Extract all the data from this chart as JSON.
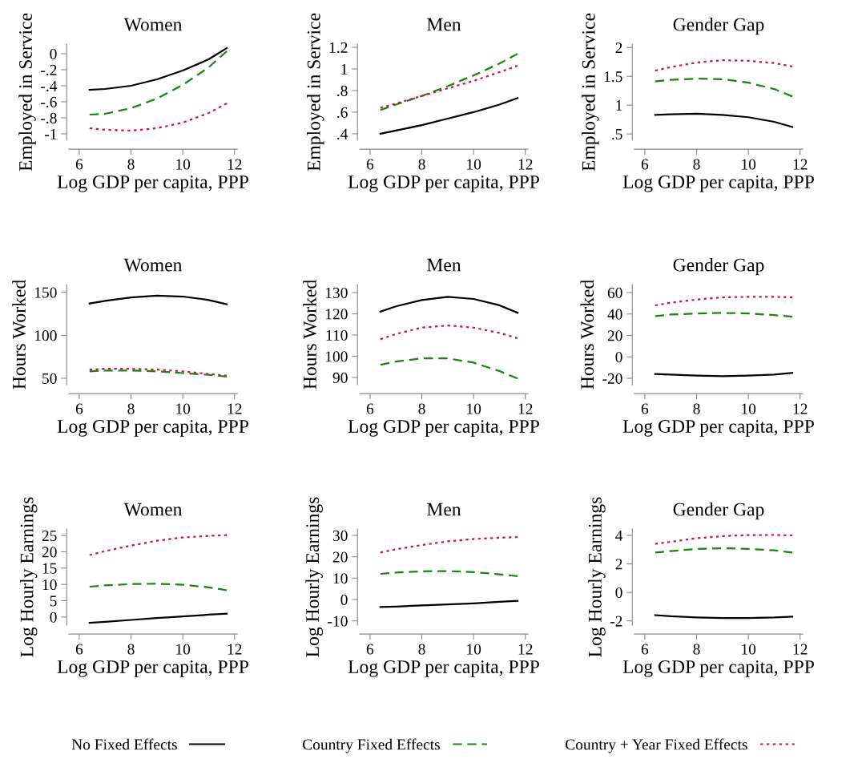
{
  "chart_data": [
    {
      "type": "line",
      "title": "Women",
      "xlabel": "Log GDP per capita, PPP",
      "ylabel": "Employed in Service",
      "xlim": [
        5.6,
        12.1
      ],
      "xticks": [
        6,
        8,
        10,
        12
      ],
      "ylim": [
        -1.08,
        0.12
      ],
      "yticks": [
        {
          "value": -1,
          "label": "-1"
        },
        {
          "value": -0.8,
          "label": "-.8"
        },
        {
          "value": -0.6,
          "label": "-.6"
        },
        {
          "value": -0.4,
          "label": "-.4"
        },
        {
          "value": -0.2,
          "label": "-.2"
        },
        0
      ],
      "grid": false,
      "legend": "bottom",
      "x": [
        6.4,
        7,
        8,
        9,
        10,
        11,
        11.7
      ],
      "series": [
        {
          "name": "No Fixed Effects",
          "color": "#000000",
          "line_style": "solid",
          "values": [
            -0.45,
            -0.44,
            -0.4,
            -0.32,
            -0.21,
            -0.07,
            0.07
          ]
        },
        {
          "name": "Country Fixed Effects",
          "color": "#138a07",
          "line_style": "dashed",
          "values": [
            -0.76,
            -0.75,
            -0.68,
            -0.56,
            -0.39,
            -0.17,
            0.03
          ]
        },
        {
          "name": "Country + Year Fixed Effects",
          "color": "#d0104c",
          "line_style": "dotted",
          "values": [
            -0.93,
            -0.95,
            -0.96,
            -0.93,
            -0.86,
            -0.74,
            -0.62
          ]
        }
      ]
    },
    {
      "type": "line",
      "title": "Men",
      "xlabel": "Log GDP per capita, PPP",
      "ylabel": "Employed in Service",
      "xlim": [
        5.6,
        12.1
      ],
      "xticks": [
        6,
        8,
        10,
        12
      ],
      "ylim": [
        0.34,
        1.23
      ],
      "yticks": [
        {
          "value": 0.4,
          "label": ".4"
        },
        {
          "value": 0.6,
          "label": ".6"
        },
        {
          "value": 0.8,
          "label": ".8"
        },
        1,
        1.2
      ],
      "grid": false,
      "x": [
        6.4,
        7,
        8,
        9,
        10,
        11,
        11.7
      ],
      "series": [
        {
          "color": "#000000",
          "line_style": "solid",
          "values": [
            0.4,
            0.43,
            0.48,
            0.54,
            0.6,
            0.67,
            0.73
          ]
        },
        {
          "color": "#138a07",
          "line_style": "dashed",
          "values": [
            0.62,
            0.67,
            0.75,
            0.84,
            0.94,
            1.05,
            1.14
          ]
        },
        {
          "color": "#d0104c",
          "line_style": "dotted",
          "values": [
            0.64,
            0.68,
            0.75,
            0.82,
            0.89,
            0.97,
            1.03
          ]
        }
      ]
    },
    {
      "type": "line",
      "title": "Gender Gap",
      "xlabel": "Log GDP per capita, PPP",
      "ylabel": "Employed in Service",
      "xlim": [
        5.6,
        12.1
      ],
      "xticks": [
        6,
        8,
        10,
        12
      ],
      "ylim": [
        0.39,
        2.06
      ],
      "yticks": [
        {
          "value": 0.5,
          "label": ".5"
        },
        1,
        1.5,
        2
      ],
      "grid": false,
      "x": [
        6.4,
        7,
        8,
        9,
        10,
        11,
        11.7
      ],
      "series": [
        {
          "color": "#000000",
          "line_style": "solid",
          "values": [
            0.83,
            0.84,
            0.85,
            0.83,
            0.79,
            0.71,
            0.62
          ]
        },
        {
          "color": "#138a07",
          "line_style": "dashed",
          "values": [
            1.41,
            1.44,
            1.46,
            1.45,
            1.39,
            1.28,
            1.15
          ]
        },
        {
          "color": "#d0104c",
          "line_style": "dotted",
          "values": [
            1.6,
            1.66,
            1.74,
            1.78,
            1.77,
            1.73,
            1.67
          ]
        }
      ]
    },
    {
      "type": "line",
      "title": "Women",
      "xlabel": "Log GDP per capita, PPP",
      "ylabel": "Hours Worked",
      "xlim": [
        5.6,
        12.1
      ],
      "xticks": [
        6,
        8,
        10,
        12
      ],
      "ylim": [
        42.5,
        159
      ],
      "yticks": [
        50,
        100,
        150
      ],
      "grid": false,
      "x": [
        6.4,
        7,
        8,
        9,
        10,
        11,
        11.7
      ],
      "series": [
        {
          "color": "#000000",
          "line_style": "solid",
          "values": [
            137,
            140,
            144,
            146,
            145,
            141,
            136
          ]
        },
        {
          "color": "#138a07",
          "line_style": "dashed",
          "values": [
            58,
            59,
            59,
            58,
            56,
            54,
            52
          ]
        },
        {
          "color": "#d0104c",
          "line_style": "dotted",
          "values": [
            60,
            61,
            61,
            60,
            58,
            55,
            53
          ]
        }
      ]
    },
    {
      "type": "line",
      "title": "Men",
      "xlabel": "Log GDP per capita, PPP",
      "ylabel": "Hours Worked",
      "xlim": [
        5.6,
        12.1
      ],
      "xticks": [
        6,
        8,
        10,
        12
      ],
      "ylim": [
        86.6,
        133.8
      ],
      "yticks": [
        90,
        100,
        110,
        120,
        130
      ],
      "grid": false,
      "x": [
        6.4,
        7,
        8,
        9,
        10,
        11,
        11.7
      ],
      "series": [
        {
          "color": "#000000",
          "line_style": "solid",
          "values": [
            121,
            123.5,
            126.5,
            128,
            127,
            124,
            120.5
          ]
        },
        {
          "color": "#138a07",
          "line_style": "dashed",
          "values": [
            96,
            97.5,
            99,
            99,
            97,
            93,
            89.5
          ]
        },
        {
          "color": "#d0104c",
          "line_style": "dotted",
          "values": [
            108,
            110.5,
            113.5,
            114.5,
            113.5,
            111,
            108.5
          ]
        }
      ]
    },
    {
      "type": "line",
      "title": "Gender Gap",
      "xlabel": "Log GDP per capita, PPP",
      "ylabel": "Hours Worked",
      "xlim": [
        5.6,
        12.1
      ],
      "xticks": [
        6,
        8,
        10,
        12
      ],
      "ylim": [
        -26,
        67.5
      ],
      "yticks": [
        -20,
        0,
        20,
        40,
        60
      ],
      "grid": false,
      "x": [
        6.4,
        7,
        8,
        9,
        10,
        11,
        11.7
      ],
      "series": [
        {
          "color": "#000000",
          "line_style": "solid",
          "values": [
            -16,
            -16.5,
            -17.5,
            -18,
            -17.5,
            -16.5,
            -15
          ]
        },
        {
          "color": "#138a07",
          "line_style": "dashed",
          "values": [
            38,
            39.5,
            40.5,
            41,
            40.5,
            39,
            37.5
          ]
        },
        {
          "color": "#d0104c",
          "line_style": "dotted",
          "values": [
            48,
            50.5,
            53.5,
            55.5,
            56,
            56,
            55.5
          ]
        }
      ]
    },
    {
      "type": "line",
      "title": "Women",
      "xlabel": "Log GDP per capita, PPP",
      "ylabel": "Log Hourly Earnings",
      "xlim": [
        5.6,
        12.1
      ],
      "xticks": [
        6,
        8,
        10,
        12
      ],
      "ylim": [
        -2.5,
        27
      ],
      "yticks": [
        0,
        5,
        10,
        15,
        20,
        25
      ],
      "grid": false,
      "x": [
        6.4,
        7,
        8,
        9,
        10,
        11,
        11.7
      ],
      "series": [
        {
          "color": "#000000",
          "line_style": "solid",
          "values": [
            -1.8,
            -1.5,
            -0.9,
            -0.3,
            0.2,
            0.7,
            1.0
          ]
        },
        {
          "color": "#138a07",
          "line_style": "dashed",
          "values": [
            9.3,
            9.7,
            10.1,
            10.2,
            9.9,
            9.1,
            8.2
          ]
        },
        {
          "color": "#d0104c",
          "line_style": "dotted",
          "values": [
            19,
            20.2,
            21.9,
            23.4,
            24.4,
            24.9,
            25.1
          ]
        }
      ]
    },
    {
      "type": "line",
      "title": "Men",
      "xlabel": "Log GDP per capita, PPP",
      "ylabel": "Log Hourly Earnings",
      "xlim": [
        5.6,
        12.1
      ],
      "xticks": [
        6,
        8,
        10,
        12
      ],
      "ylim": [
        -12,
        33
      ],
      "yticks": [
        -10,
        0,
        10,
        20,
        30
      ],
      "grid": false,
      "x": [
        6.4,
        7,
        8,
        9,
        10,
        11,
        11.7
      ],
      "series": [
        {
          "color": "#000000",
          "line_style": "solid",
          "values": [
            -3.5,
            -3.3,
            -2.8,
            -2.3,
            -1.8,
            -1.1,
            -0.6
          ]
        },
        {
          "color": "#138a07",
          "line_style": "dashed",
          "values": [
            12,
            12.6,
            13.2,
            13.3,
            12.8,
            11.8,
            10.9
          ]
        },
        {
          "color": "#d0104c",
          "line_style": "dotted",
          "values": [
            22,
            23.5,
            25.5,
            27.2,
            28.3,
            28.9,
            29.2
          ]
        }
      ]
    },
    {
      "type": "line",
      "title": "Gender Gap",
      "xlabel": "Log GDP per capita, PPP",
      "ylabel": "Log Hourly Earnings",
      "xlim": [
        5.6,
        12.1
      ],
      "xticks": [
        6,
        8,
        10,
        12
      ],
      "ylim": [
        -2.3,
        4.45
      ],
      "yticks": [
        -2,
        0,
        2,
        4
      ],
      "grid": false,
      "x": [
        6.4,
        7,
        8,
        9,
        10,
        11,
        11.7
      ],
      "series": [
        {
          "color": "#000000",
          "line_style": "solid",
          "values": [
            -1.6,
            -1.68,
            -1.76,
            -1.8,
            -1.8,
            -1.76,
            -1.7
          ]
        },
        {
          "color": "#138a07",
          "line_style": "dashed",
          "values": [
            2.8,
            2.9,
            3.05,
            3.1,
            3.05,
            2.95,
            2.8
          ]
        },
        {
          "color": "#d0104c",
          "line_style": "dotted",
          "values": [
            3.4,
            3.55,
            3.8,
            3.95,
            4.02,
            4.03,
            4.0
          ]
        }
      ]
    }
  ]
}
